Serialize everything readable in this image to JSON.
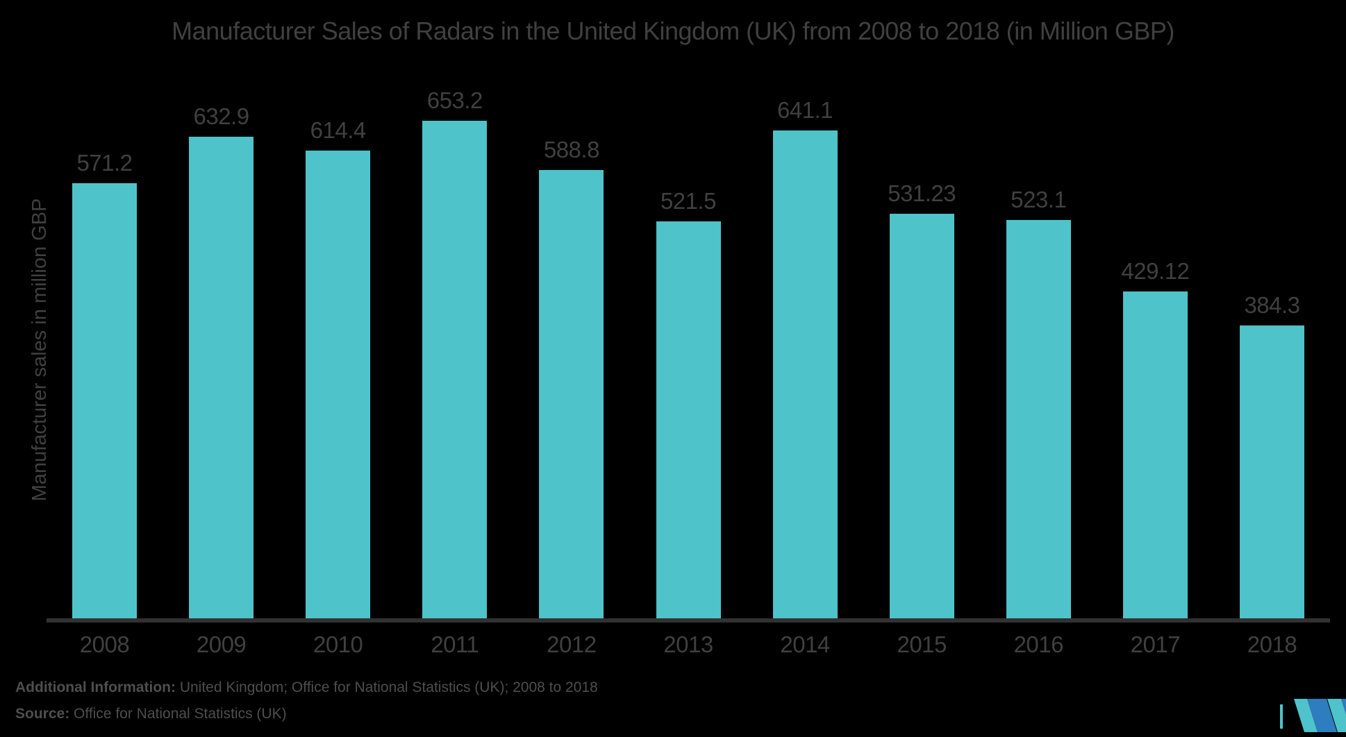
{
  "chart_data": {
    "type": "bar",
    "title": "Manufacturer Sales of Radars in the United Kingdom (UK) from 2008 to 2018 (in Million GBP)",
    "categories": [
      "2008",
      "2009",
      "2010",
      "2011",
      "2012",
      "2013",
      "2014",
      "2015",
      "2016",
      "2017",
      "2018"
    ],
    "values": [
      571.2,
      632.9,
      614.4,
      653.2,
      588.8,
      521.5,
      641.1,
      531.23,
      523.1,
      429.12,
      384.3
    ],
    "value_labels": [
      "571.2",
      "632.9",
      "614.4",
      "653.2",
      "588.8",
      "521.5",
      "641.1",
      "531.23",
      "523.1",
      "429.12",
      "384.3"
    ],
    "xlabel": "",
    "ylabel": "Manufacturer sales in million GBP",
    "ylim": [
      0,
      730
    ],
    "grid": false,
    "legend": false,
    "bar_color": "#4EC3CA"
  },
  "footer": {
    "additional_info_label": "Additional Information:",
    "additional_info_text": " United Kingdom; Office for National Statistics (UK); 2008 to 2018",
    "source_label": "Source:",
    "source_text": " Office for National Statistics (UK)"
  },
  "colors": {
    "background": "#000000",
    "bar": "#4EC3CA",
    "chart_text": "#404040",
    "axis": "#323232",
    "footer_text": "#4E4E4E",
    "logo_teal": "#4EC3CB",
    "logo_blue": "#2E7DBE"
  }
}
